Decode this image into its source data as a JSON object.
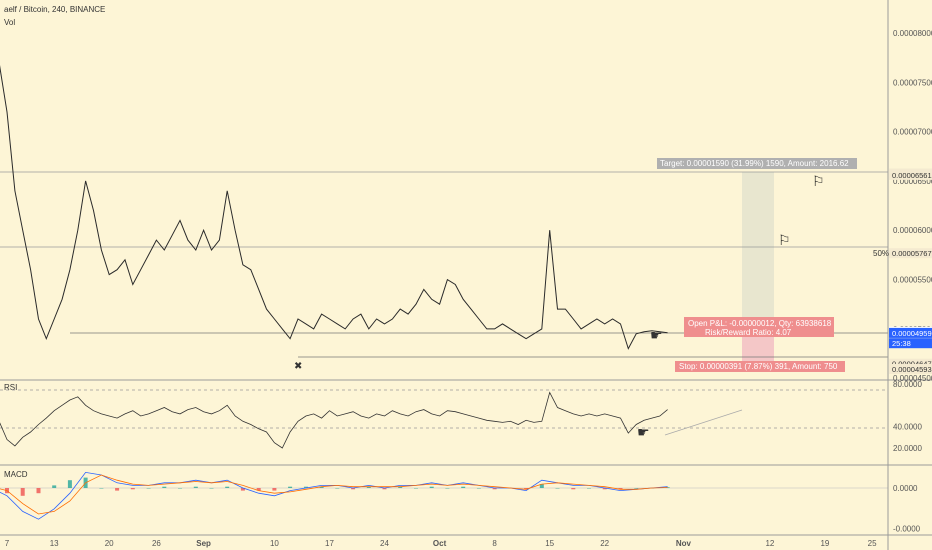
{
  "header": {
    "symbol": "aelf / Bitcoin, 240, BINANCE",
    "vol_label": "Vol"
  },
  "indicators": {
    "rsi_label": "RSI",
    "macd_label": "MACD"
  },
  "price_axis": {
    "ticks": [
      "0.00008000",
      "0.00007500",
      "0.00007000",
      "0.00006500",
      "0.00006000",
      "0.00005500",
      "0.00005000",
      "0.00004500"
    ],
    "ticks_values": [
      8e-05,
      7.5e-05,
      7e-05,
      6.5e-05,
      6e-05,
      5.5e-05,
      5e-05,
      4.5e-05
    ]
  },
  "rsi_axis": {
    "ticks": [
      "80.0000",
      "40.0000",
      "20.0000"
    ],
    "ticks_values": [
      80,
      40,
      20
    ]
  },
  "macd_axis": {
    "ticks": [
      "0.0000",
      "-0.0000"
    ],
    "ticks_values": [
      0,
      -1
    ]
  },
  "price_tags": [
    {
      "label": "0.00006575",
      "value": 6.575e-05,
      "bg": "#f4ead0",
      "fg": "#333333"
    },
    {
      "label": "0.00006561",
      "value": 6.561e-05,
      "bg": "#f4ead0",
      "fg": "#333333"
    },
    {
      "label": "0.00005767",
      "value": 5.767e-05,
      "bg": "#f4ead0",
      "fg": "#333333"
    },
    {
      "label": "0.00004971",
      "value": 4.971e-05,
      "bg": "#ffffff",
      "fg": "#333333"
    },
    {
      "label": "0.00004959",
      "value": 4.959e-05,
      "bg": "#2962ff",
      "fg": "#ffffff"
    },
    {
      "label": "25:38",
      "value": 4.855e-05,
      "bg": "#2962ff",
      "fg": "#ffffff"
    },
    {
      "label": "0.00004647",
      "value": 4.647e-05,
      "bg": "#f4ead0",
      "fg": "#333333"
    },
    {
      "label": "0.00004593",
      "value": 4.593e-05,
      "bg": "#f4ead0",
      "fg": "#333333"
    }
  ],
  "annotations": {
    "target": "Target: 0.00001590 (31.99%) 1590, Amount: 2016.62",
    "open_pnl": "Open P&L: -0.00000012, Qty: 63938618",
    "risk_reward": "Risk/Reward Ratio: 4.07",
    "stop": "Stop: 0.00000391 (7.87%) 391, Amount: 750",
    "fib_50": "50%"
  },
  "time_axis": {
    "ticks": [
      "7",
      "13",
      "20",
      "26",
      "Sep",
      "10",
      "17",
      "24",
      "Oct",
      "8",
      "15",
      "22",
      "Nov",
      "12",
      "19",
      "25"
    ],
    "ticks_days": [
      7,
      13,
      20,
      26,
      32,
      41,
      48,
      55,
      62,
      69,
      76,
      83,
      93,
      104,
      111,
      117
    ]
  },
  "colors": {
    "background": "#fdf5d6",
    "line": "#2a2a2a",
    "macd": "#2962ff",
    "signal": "#ff6d00",
    "hist_pos": "#26a69a",
    "hist_neg": "#ef5350",
    "target_zone": "#e8e6cf",
    "stop_zone": "#f4c7c7"
  },
  "chart_data": [
    {
      "type": "line",
      "title": "aelf / Bitcoin, 240, BINANCE",
      "x_unit": "day of period (Aug 1 = day 1)",
      "x": [
        1,
        2,
        3,
        4,
        5,
        6,
        7,
        8,
        9,
        10,
        11,
        12,
        13,
        14,
        15,
        16,
        17,
        18,
        19,
        20,
        21,
        22,
        23,
        24,
        25,
        26,
        27,
        28,
        29,
        30,
        31,
        32,
        33,
        34,
        35,
        36,
        37,
        38,
        39,
        40,
        41,
        42,
        43,
        44,
        45,
        46,
        47,
        48,
        49,
        50,
        51,
        52,
        53,
        54,
        55,
        56,
        57,
        58,
        59,
        60,
        61,
        62,
        63,
        64,
        65,
        66,
        67,
        68,
        69,
        70,
        71,
        72,
        73,
        74,
        75,
        76,
        77,
        78,
        79,
        80,
        81,
        82,
        83,
        84,
        85,
        86,
        87,
        88,
        89,
        90,
        91
      ],
      "values": [
        7.8e-05,
        7.9e-05,
        7.75e-05,
        8e-05,
        7.92e-05,
        7.7e-05,
        7.2e-05,
        6.4e-05,
        6e-05,
        5.6e-05,
        5.1e-05,
        4.9e-05,
        5.1e-05,
        5.3e-05,
        5.6e-05,
        6e-05,
        6.5e-05,
        6.2e-05,
        5.8e-05,
        5.55e-05,
        5.6e-05,
        5.7e-05,
        5.45e-05,
        5.6e-05,
        5.75e-05,
        5.9e-05,
        5.8e-05,
        5.95e-05,
        6.1e-05,
        5.9e-05,
        5.8e-05,
        6e-05,
        5.8e-05,
        5.9e-05,
        6.4e-05,
        6e-05,
        5.65e-05,
        5.6e-05,
        5.4e-05,
        5.2e-05,
        5.1e-05,
        5e-05,
        4.9e-05,
        5.1e-05,
        5.05e-05,
        5e-05,
        5.15e-05,
        5.1e-05,
        5.05e-05,
        5e-05,
        5.1e-05,
        5.15e-05,
        5e-05,
        5.1e-05,
        5.05e-05,
        5.1e-05,
        5.2e-05,
        5.15e-05,
        5.25e-05,
        5.4e-05,
        5.3e-05,
        5.25e-05,
        5.5e-05,
        5.45e-05,
        5.3e-05,
        5.2e-05,
        5.1e-05,
        5e-05,
        5e-05,
        5.05e-05,
        5e-05,
        4.95e-05,
        4.9e-05,
        4.95e-05,
        5e-05,
        6e-05,
        5.2e-05,
        5.2e-05,
        5.1e-05,
        5e-05,
        5.05e-05,
        5.1e-05,
        5.05e-05,
        5.1e-05,
        5.05e-05,
        4.8e-05,
        4.95e-05,
        4.97e-05,
        4.98e-05,
        4.97e-05,
        4.96e-05
      ],
      "ylim": [
        4.593e-05,
        8.2e-05
      ],
      "grid": false
    },
    {
      "type": "line",
      "title": "RSI",
      "x_unit": "day of period (Aug 1 = day 1)",
      "x": [
        1,
        2,
        3,
        4,
        5,
        6,
        7,
        8,
        9,
        10,
        11,
        12,
        13,
        14,
        15,
        16,
        17,
        18,
        19,
        20,
        21,
        22,
        23,
        24,
        25,
        26,
        27,
        28,
        29,
        30,
        31,
        32,
        33,
        34,
        35,
        36,
        37,
        38,
        39,
        40,
        41,
        42,
        43,
        44,
        45,
        46,
        47,
        48,
        49,
        50,
        51,
        52,
        53,
        54,
        55,
        56,
        57,
        58,
        59,
        60,
        61,
        62,
        63,
        64,
        65,
        66,
        67,
        68,
        69,
        70,
        71,
        72,
        73,
        74,
        75,
        76,
        77,
        78,
        79,
        80,
        81,
        82,
        83,
        84,
        85,
        86,
        87,
        88,
        89,
        90,
        91
      ],
      "values": [
        62,
        58,
        55,
        60,
        50,
        45,
        28,
        22,
        30,
        35,
        42,
        48,
        55,
        60,
        65,
        68,
        60,
        55,
        52,
        50,
        48,
        52,
        55,
        50,
        52,
        55,
        58,
        54,
        52,
        56,
        58,
        54,
        52,
        55,
        60,
        50,
        45,
        42,
        38,
        35,
        25,
        20,
        35,
        45,
        50,
        52,
        48,
        55,
        50,
        52,
        54,
        50,
        48,
        52,
        50,
        55,
        52,
        50,
        54,
        56,
        52,
        50,
        55,
        54,
        52,
        50,
        48,
        46,
        45,
        44,
        45,
        42,
        46,
        44,
        45,
        72,
        58,
        55,
        52,
        50,
        52,
        50,
        52,
        50,
        48,
        34,
        42,
        46,
        48,
        50,
        56
      ],
      "ylim": [
        15,
        85
      ],
      "grid": false
    },
    {
      "type": "line",
      "title": "MACD",
      "x_unit": "day of period (Aug 1 = day 1)",
      "x": [
        1,
        3,
        5,
        7,
        9,
        11,
        13,
        15,
        17,
        19,
        21,
        23,
        25,
        27,
        29,
        31,
        33,
        35,
        37,
        39,
        41,
        43,
        45,
        47,
        49,
        51,
        53,
        55,
        57,
        59,
        61,
        63,
        65,
        67,
        69,
        71,
        73,
        75,
        77,
        79,
        81,
        83,
        85,
        87,
        89,
        91
      ],
      "series": [
        {
          "name": "MACD",
          "values": [
            0.1,
            0.1,
            0,
            -0.3,
            -0.9,
            -1.2,
            -0.8,
            -0.2,
            0.6,
            0.5,
            0.2,
            0.1,
            0.1,
            0.2,
            0.2,
            0.3,
            0.2,
            0.3,
            0,
            -0.2,
            -0.3,
            -0.1,
            0,
            0.1,
            0.1,
            0,
            0.1,
            0,
            0.1,
            0.1,
            0.2,
            0.1,
            0.2,
            0.1,
            0,
            0,
            -0.1,
            0.3,
            0.2,
            0.1,
            0.1,
            0,
            -0.1,
            -0.05,
            0,
            0.05
          ]
        },
        {
          "name": "Signal",
          "values": [
            0.1,
            0.1,
            0.05,
            -0.1,
            -0.6,
            -1.0,
            -0.9,
            -0.5,
            0.2,
            0.5,
            0.3,
            0.15,
            0.1,
            0.15,
            0.2,
            0.25,
            0.2,
            0.25,
            0.1,
            -0.1,
            -0.2,
            -0.15,
            -0.05,
            0.05,
            0.1,
            0.05,
            0.05,
            0.05,
            0.05,
            0.1,
            0.15,
            0.1,
            0.15,
            0.1,
            0.05,
            0,
            -0.05,
            0.15,
            0.2,
            0.15,
            0.1,
            0.05,
            -0.05,
            -0.05,
            0,
            0.02
          ]
        },
        {
          "name": "Histogram",
          "values": [
            0,
            0,
            -0.05,
            -0.2,
            -0.3,
            -0.2,
            0.1,
            0.3,
            0.4,
            0,
            -0.1,
            -0.05,
            0,
            0.05,
            0,
            0.05,
            0,
            0.05,
            -0.1,
            -0.1,
            -0.1,
            0.05,
            0.05,
            0.05,
            0,
            -0.05,
            0.05,
            -0.05,
            0.05,
            0,
            0.05,
            0,
            0.05,
            0,
            -0.05,
            0,
            -0.05,
            0.15,
            0,
            -0.05,
            0,
            -0.05,
            -0.05,
            0,
            0,
            0.03
          ]
        }
      ],
      "ylim": [
        -1.4,
        0.9
      ],
      "grid": false
    }
  ]
}
